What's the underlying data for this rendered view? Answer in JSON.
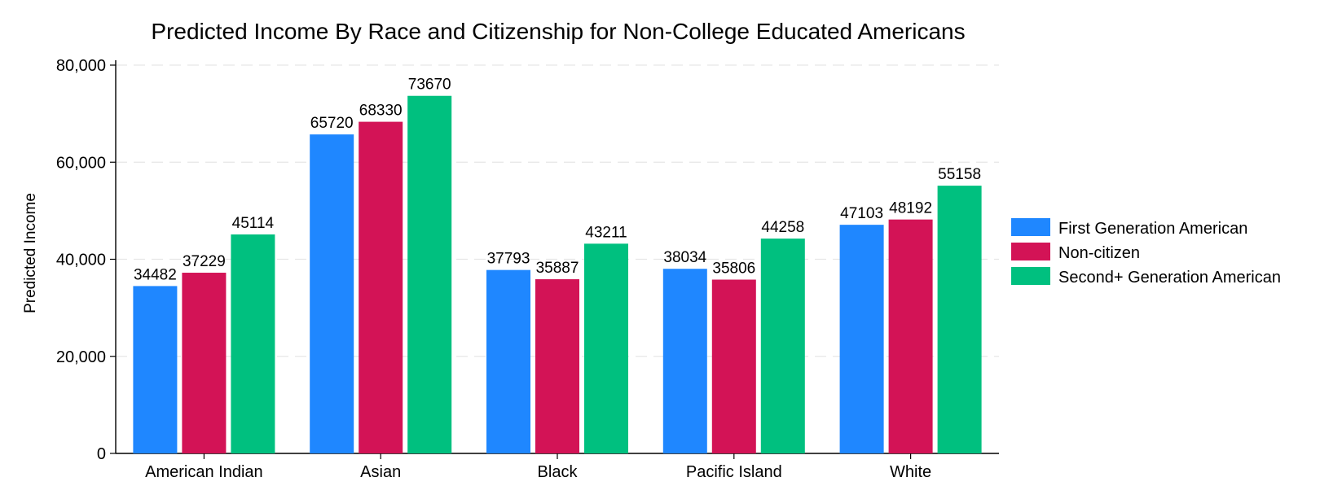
{
  "chart_data": {
    "type": "bar",
    "title": "Predicted Income By Race and Citizenship for Non-College Educated Americans",
    "xlabel": "",
    "ylabel": "Predicted Income",
    "ylim": [
      0,
      80000
    ],
    "yticks": [
      0,
      20000,
      40000,
      60000,
      80000
    ],
    "ytick_labels": [
      "0",
      "20,000",
      "40,000",
      "60,000",
      "80,000"
    ],
    "grid": true,
    "legend_position": "right",
    "categories": [
      "American Indian",
      "Asian",
      "Black",
      "Pacific Island",
      "White"
    ],
    "series": [
      {
        "name": "First Generation American",
        "color": "#1f87ff",
        "values": [
          34482,
          65720,
          37793,
          38034,
          47103
        ]
      },
      {
        "name": "Non-citizen",
        "color": "#d31356",
        "values": [
          37229,
          68330,
          35887,
          35806,
          48192
        ]
      },
      {
        "name": "Second+ Generation American",
        "color": "#00c07f",
        "values": [
          45114,
          73670,
          43211,
          44258,
          55158
        ]
      }
    ]
  }
}
